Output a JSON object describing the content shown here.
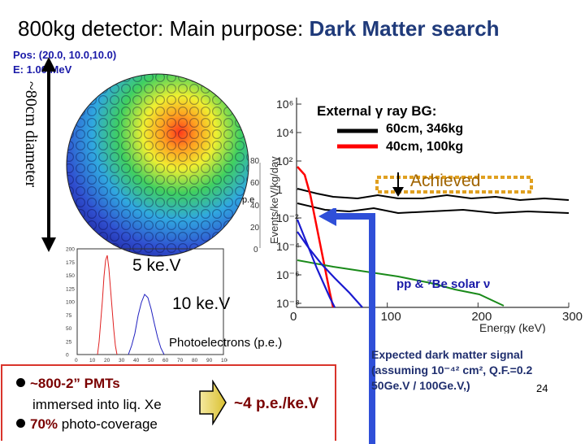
{
  "title": {
    "prefix": "800kg detector:  Main purpose: ",
    "highlight": "Dark Matter search"
  },
  "simulation": {
    "pos": "Pos: (20.0,  10.0,10.0)",
    "energy": "E: 1.00 MeV"
  },
  "diameter_label": "~80cm diameter",
  "spectrum": {
    "y_axis": "Events/keV/kg/day",
    "x_axis": "Energy (keV)",
    "x_ticks": [
      "0",
      "100",
      "200",
      "300"
    ],
    "y_ticks": [
      "10⁶",
      "10⁴",
      "10²",
      "1",
      "10⁻²",
      "10⁻⁴",
      "10⁻⁶",
      "10⁻⁸"
    ],
    "legend_title": "External γ ray BG:",
    "legend": [
      "60cm, 346kg",
      "40cm, 100kg"
    ],
    "achieved": "Achieved",
    "solar_nu": "pp & ⁷Be solar ν",
    "side_ticks": [
      "80",
      "60",
      "40",
      "20",
      "0"
    ],
    "side_label": "p.e"
  },
  "histogram": {
    "y_ticks": [
      "200",
      "175",
      "150",
      "125",
      "100",
      "75",
      "50",
      "25",
      "0"
    ],
    "x_ticks": [
      "0",
      "10",
      "20",
      "30",
      "40",
      "50",
      "60",
      "70",
      "80",
      "90",
      "100"
    ],
    "label_5kev": "5 ke.V",
    "label_10kev": "10 ke.V",
    "x_label": "Photoelectrons (p.e.)"
  },
  "bullets": {
    "line1": "~800-2” PMTs",
    "line1b": "immersed into liq. Xe",
    "line2_bold": "70%",
    "line2_rest": " photo-coverage"
  },
  "pe_per_kev": "~4 p.e./ke.V",
  "expected": {
    "line1": "Expected dark matter signal",
    "line2": "(assuming 10⁻⁴² cm², Q.F.=0.2",
    "line3": "50Ge.V / 100Ge.V,)"
  },
  "page_number": "24",
  "colors": {
    "title_highlight": "#1f3a7a",
    "bg_line_large": "#000000",
    "bg_line_small": "#ff0000",
    "achieved": "#e0a020",
    "solar": "#1a8a1a",
    "signal": "#1a1ad0",
    "box_border": "#d9342b"
  }
}
